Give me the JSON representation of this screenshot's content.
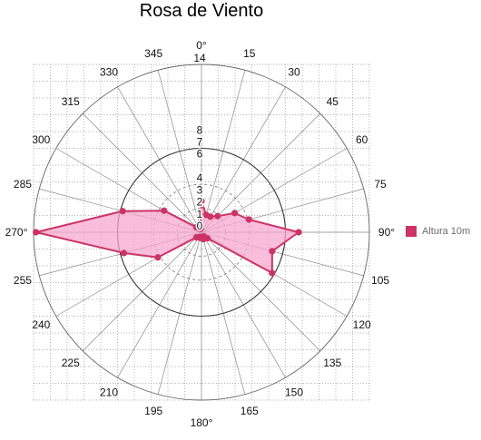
{
  "chart_data": {
    "type": "radar",
    "title": "Rosa de Viento",
    "angular_axis": {
      "unit": "°",
      "ticks": [
        0,
        15,
        30,
        45,
        60,
        75,
        90,
        105,
        120,
        135,
        150,
        165,
        180,
        195,
        210,
        225,
        240,
        255,
        270,
        285,
        300,
        315,
        330,
        345
      ],
      "labels": [
        "0°",
        "15",
        "30",
        "45",
        "60",
        "75",
        "90°",
        "105",
        "120",
        "135",
        "150",
        "165",
        "180°",
        "195",
        "210",
        "225",
        "240",
        "255",
        "270°",
        "285",
        "300",
        "315",
        "330",
        "345"
      ]
    },
    "radial_axis": {
      "tick_labels": [
        "0",
        "1",
        "2",
        "3",
        "4",
        "6",
        "7",
        "8",
        "14"
      ],
      "tick_values": [
        0,
        1,
        2,
        3,
        4,
        6,
        7,
        8,
        14
      ],
      "range": [
        0,
        14
      ],
      "highlighted_rings": [
        7,
        14
      ],
      "minor_rings": [
        2,
        4
      ]
    },
    "grid": true,
    "legend_position": "right",
    "series": [
      {
        "name": "Altura 10m",
        "color": "#cc3366",
        "fill": "#f7a8cf",
        "directions": [
          0,
          15,
          30,
          45,
          60,
          75,
          90,
          105,
          120,
          135,
          150,
          165,
          180,
          195,
          210,
          225,
          240,
          255,
          270,
          285,
          300,
          315,
          330,
          345
        ],
        "values": [
          2.6,
          1.5,
          1.5,
          1.9,
          3.2,
          4.1,
          8.1,
          6.1,
          6.8,
          0.7,
          0.4,
          0.6,
          0.5,
          0.4,
          0.5,
          0.6,
          4.2,
          6.7,
          13.8,
          6.8,
          3.6,
          0.6,
          0.4,
          0.3
        ]
      }
    ]
  }
}
